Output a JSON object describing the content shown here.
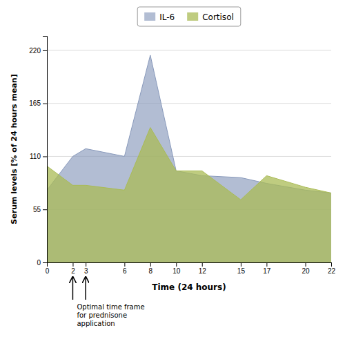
{
  "chart_data": {
    "type": "area",
    "x": [
      0,
      2,
      3,
      6,
      8,
      10,
      12,
      15,
      17,
      20,
      22
    ],
    "series": [
      {
        "name": "IL-6",
        "color": "#8899bb",
        "values": [
          75,
          110,
          118,
          110,
          215,
          95,
          90,
          88,
          82,
          75,
          72
        ]
      },
      {
        "name": "Cortisol",
        "color": "#aabb55",
        "values": [
          100,
          80,
          80,
          75,
          140,
          95,
          95,
          65,
          90,
          78,
          72
        ]
      }
    ],
    "xlabel": "Time (24 hours)",
    "ylabel": "Serum levels [% of 24 hours mean]",
    "xlim": [
      0,
      22
    ],
    "ylim": [
      0,
      235
    ],
    "xticks": [
      0,
      2,
      3,
      6,
      8,
      10,
      12,
      15,
      17,
      20,
      22
    ],
    "yticks": [
      0,
      55,
      110,
      165,
      220
    ],
    "grid": true,
    "legend": "top",
    "annotations": [
      {
        "text": "Optimal time frame\nfor prednisone\napplication",
        "arrows_x": [
          2,
          3
        ]
      }
    ]
  }
}
